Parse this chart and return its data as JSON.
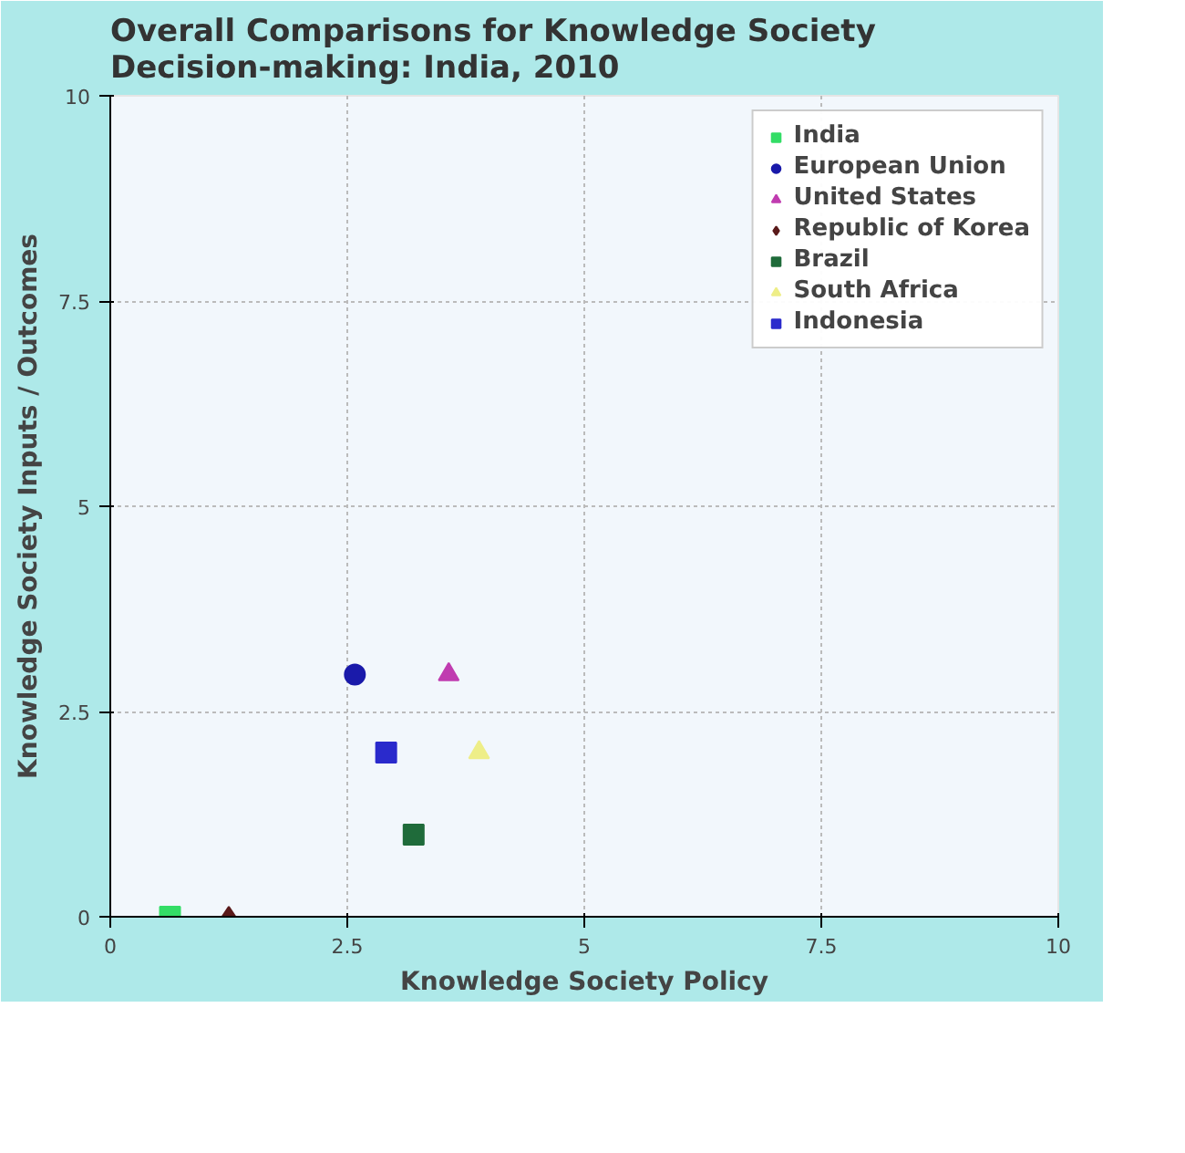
{
  "chart_data": {
    "type": "scatter",
    "title": "Overall Comparisons for Knowledge Society Decision-making: India, 2010",
    "xlabel": "Knowledge Society Policy",
    "ylabel": "Knowledge Society Inputs / Outcomes",
    "xlim": [
      0,
      10
    ],
    "ylim": [
      0,
      10
    ],
    "xticks": [
      0,
      2.5,
      5,
      7.5,
      10
    ],
    "yticks": [
      0,
      2.5,
      5,
      7.5,
      10
    ],
    "grid": true,
    "legend": "top right",
    "series": [
      {
        "name": "India",
        "color": "#33dd66",
        "marker": "square",
        "x": [
          0.63
        ],
        "values": [
          0
        ]
      },
      {
        "name": "European Union",
        "color": "#1a1aaa",
        "marker": "circle",
        "x": [
          2.58
        ],
        "values": [
          2.95
        ]
      },
      {
        "name": "United States",
        "color": "#c03cb0",
        "marker": "triangle",
        "x": [
          3.57
        ],
        "values": [
          2.95
        ]
      },
      {
        "name": "Republic of Korea",
        "color": "#5a1a1a",
        "marker": "diamond",
        "x": [
          1.25
        ],
        "values": [
          0
        ]
      },
      {
        "name": "Brazil",
        "color": "#1f6b3a",
        "marker": "square",
        "x": [
          3.2
        ],
        "values": [
          1
        ]
      },
      {
        "name": "South Africa",
        "color": "#eeee88",
        "marker": "triangle",
        "x": [
          3.89
        ],
        "values": [
          2
        ]
      },
      {
        "name": "Indonesia",
        "color": "#2a2acc",
        "marker": "square",
        "x": [
          2.91
        ],
        "values": [
          2
        ]
      }
    ]
  }
}
